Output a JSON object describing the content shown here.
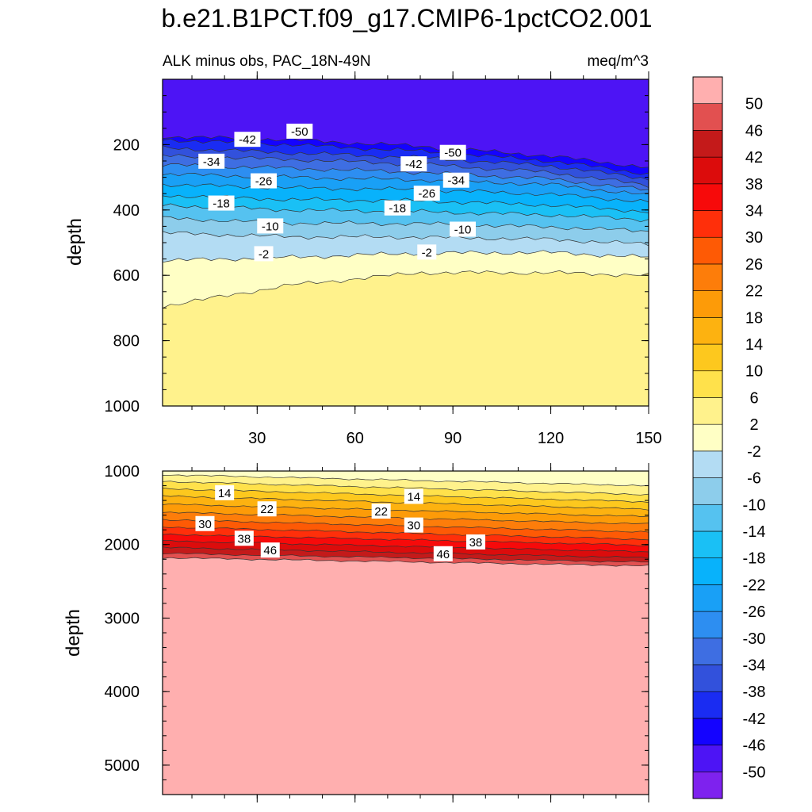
{
  "title": "b.e21.B1PCT.f09_g17.CMIP6-1pctCO2.001",
  "chart_data": {
    "type": "contour",
    "colorbar": {
      "levels": [
        -50,
        -46,
        -42,
        -38,
        -34,
        -30,
        -26,
        -22,
        -18,
        -14,
        -10,
        -6,
        -2,
        2,
        6,
        10,
        14,
        18,
        22,
        26,
        30,
        34,
        38,
        42,
        46,
        50
      ],
      "colors": [
        "#7e22ee",
        "#4d14f5",
        "#1403ff",
        "#1a2cf2",
        "#3251dc",
        "#3e6ee2",
        "#2d8ef1",
        "#19a0f6",
        "#08b2fb",
        "#1ac0f5",
        "#55c2f0",
        "#8dcdeb",
        "#b3dcf3",
        "#ffffc5",
        "#fff28c",
        "#ffe14b",
        "#fdc81e",
        "#fdb210",
        "#fd9b08",
        "#fd7d0a",
        "#fe5a05",
        "#ff2f0a",
        "#f70a0a",
        "#dc0c0c",
        "#c41a1a",
        "#e25050",
        "#ffafaf"
      ]
    },
    "panels": [
      {
        "id": "upper",
        "subtitle_left": "ALK minus obs, PAC_18N-49N",
        "subtitle_right": "meq/m^3",
        "ylabel": "depth",
        "xlim": [
          1,
          150
        ],
        "ylim": [
          1000,
          0
        ],
        "xticks": [
          30,
          60,
          90,
          120,
          150
        ],
        "xtick_labels": [
          "30",
          "60",
          "90",
          "120",
          "150"
        ],
        "yticks": [
          200,
          400,
          600,
          800,
          1000
        ],
        "ytick_labels": [
          "200",
          "400",
          "600",
          "800",
          "1000"
        ],
        "contour_depths_at_x": {
          "x": [
            1,
            40,
            80,
            120,
            150
          ],
          "levels": [
            -46,
            -42,
            -38,
            -34,
            -30,
            -26,
            -22,
            -18,
            -14,
            -10,
            -6,
            -2,
            2
          ],
          "depths": [
            [
              175,
              185,
              205,
              235,
              270
            ],
            [
              185,
              200,
              220,
              250,
              290
            ],
            [
              210,
              225,
              240,
              265,
              305
            ],
            [
              235,
              245,
              260,
              285,
              325
            ],
            [
              262,
              272,
              285,
              305,
              340
            ],
            [
              290,
              300,
              308,
              322,
              355
            ],
            [
              322,
              332,
              338,
              352,
              375
            ],
            [
              355,
              368,
              372,
              385,
              405
            ],
            [
              385,
              400,
              405,
              415,
              430
            ],
            [
              425,
              440,
              442,
              452,
              465
            ],
            [
              470,
              482,
              483,
              490,
              505
            ],
            [
              555,
              545,
              532,
              530,
              545
            ],
            [
              695,
              630,
              592,
              592,
              600
            ]
          ]
        },
        "labels": [
          {
            "text": "-50",
            "x": 43,
            "y": 160
          },
          {
            "text": "-50",
            "x": 90,
            "y": 225
          },
          {
            "text": "-42",
            "x": 27,
            "y": 185
          },
          {
            "text": "-42",
            "x": 78,
            "y": 260
          },
          {
            "text": "-34",
            "x": 16,
            "y": 252
          },
          {
            "text": "-34",
            "x": 91,
            "y": 310
          },
          {
            "text": "-26",
            "x": 32,
            "y": 312
          },
          {
            "text": "-26",
            "x": 82,
            "y": 350
          },
          {
            "text": "-18",
            "x": 19,
            "y": 380
          },
          {
            "text": "-18",
            "x": 73,
            "y": 395
          },
          {
            "text": "-10",
            "x": 34,
            "y": 450
          },
          {
            "text": "-10",
            "x": 93,
            "y": 460
          },
          {
            "text": "-2",
            "x": 32,
            "y": 535
          },
          {
            "text": "-2",
            "x": 82,
            "y": 530
          }
        ]
      },
      {
        "id": "lower",
        "ylabel": "depth",
        "xlim": [
          1,
          150
        ],
        "ylim": [
          5400,
          1000
        ],
        "yticks": [
          1000,
          2000,
          3000,
          4000,
          5000
        ],
        "ytick_labels": [
          "1000",
          "2000",
          "3000",
          "4000",
          "5000"
        ],
        "contour_depths_at_x": {
          "x": [
            1,
            150
          ],
          "levels": [
            2,
            6,
            10,
            14,
            18,
            22,
            26,
            30,
            34,
            38,
            42,
            46,
            50
          ],
          "depths": [
            [
              1050,
              1200
            ],
            [
              1140,
              1320
            ],
            [
              1240,
              1420
            ],
            [
              1340,
              1520
            ],
            [
              1450,
              1620
            ],
            [
              1560,
              1720
            ],
            [
              1660,
              1830
            ],
            [
              1760,
              1930
            ],
            [
              1860,
              2010
            ],
            [
              1950,
              2100
            ],
            [
              2040,
              2180
            ],
            [
              2120,
              2240
            ],
            [
              2180,
              2290
            ]
          ]
        },
        "labels": [
          {
            "text": "14",
            "x": 20,
            "y": 1300
          },
          {
            "text": "14",
            "x": 78,
            "y": 1350
          },
          {
            "text": "22",
            "x": 33,
            "y": 1520
          },
          {
            "text": "22",
            "x": 68,
            "y": 1550
          },
          {
            "text": "30",
            "x": 14,
            "y": 1720
          },
          {
            "text": "30",
            "x": 78,
            "y": 1740
          },
          {
            "text": "38",
            "x": 26,
            "y": 1920
          },
          {
            "text": "38",
            "x": 97,
            "y": 1970
          },
          {
            "text": "46",
            "x": 34,
            "y": 2080
          },
          {
            "text": "46",
            "x": 87,
            "y": 2130
          }
        ]
      }
    ]
  }
}
